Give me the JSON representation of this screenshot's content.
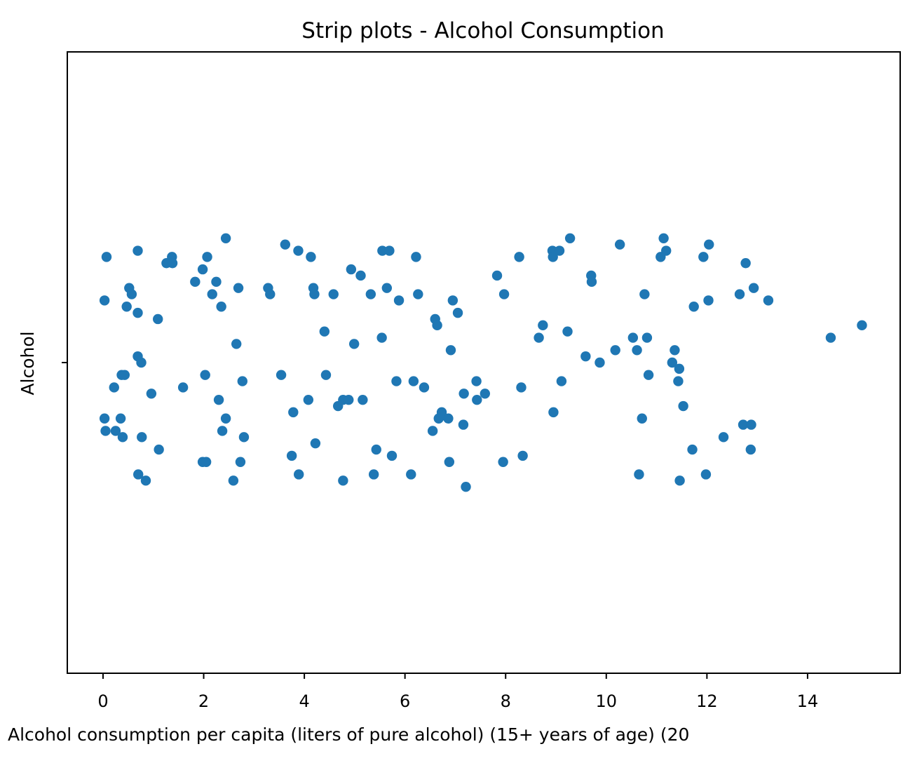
{
  "chart_data": {
    "type": "scatter",
    "title": "Strip plots - Alcohol Consumption",
    "xlabel": "Alcohol consumption per capita (liters of pure alcohol) (15+ years of age) (20",
    "ylabel": "Alcohol",
    "category": "Alcohol",
    "xlim": [
      -0.71,
      15.84
    ],
    "x_ticks": [
      0,
      2,
      4,
      6,
      8,
      10,
      12,
      14
    ],
    "y_ticks": [
      0
    ],
    "grid": false,
    "colors": {
      "points": "#1f77b4",
      "axes": "#000000"
    },
    "series": [
      {
        "points": [
          {
            "x": 0.07,
            "y": 0.17
          },
          {
            "x": 0.03,
            "y": 0.1
          },
          {
            "x": 0.22,
            "y": -0.04
          },
          {
            "x": 0.37,
            "y": -0.02
          },
          {
            "x": 0.43,
            "y": -0.02
          },
          {
            "x": 0.03,
            "y": -0.09
          },
          {
            "x": 0.05,
            "y": -0.11
          },
          {
            "x": 0.25,
            "y": -0.11
          },
          {
            "x": 0.35,
            "y": -0.09
          },
          {
            "x": 0.39,
            "y": -0.12
          },
          {
            "x": 0.47,
            "y": 0.09
          },
          {
            "x": 0.52,
            "y": 0.12
          },
          {
            "x": 0.57,
            "y": 0.11
          },
          {
            "x": 0.69,
            "y": 0.18
          },
          {
            "x": 0.69,
            "y": 0.08
          },
          {
            "x": 0.69,
            "y": 0.01
          },
          {
            "x": 0.76,
            "y": 0.0
          },
          {
            "x": 0.77,
            "y": -0.12
          },
          {
            "x": 0.7,
            "y": -0.18
          },
          {
            "x": 0.85,
            "y": -0.19
          },
          {
            "x": 0.96,
            "y": -0.05
          },
          {
            "x": 1.09,
            "y": 0.07
          },
          {
            "x": 1.11,
            "y": -0.14
          },
          {
            "x": 1.26,
            "y": 0.16
          },
          {
            "x": 1.37,
            "y": 0.17
          },
          {
            "x": 1.38,
            "y": 0.16
          },
          {
            "x": 1.59,
            "y": -0.04
          },
          {
            "x": 1.83,
            "y": 0.13
          },
          {
            "x": 1.98,
            "y": 0.15
          },
          {
            "x": 2.07,
            "y": 0.17
          },
          {
            "x": 2.17,
            "y": 0.11
          },
          {
            "x": 2.25,
            "y": 0.13
          },
          {
            "x": 2.03,
            "y": -0.02
          },
          {
            "x": 1.98,
            "y": -0.16
          },
          {
            "x": 2.05,
            "y": -0.16
          },
          {
            "x": 2.3,
            "y": -0.06
          },
          {
            "x": 2.35,
            "y": 0.09
          },
          {
            "x": 2.44,
            "y": 0.2
          },
          {
            "x": 2.37,
            "y": -0.11
          },
          {
            "x": 2.44,
            "y": -0.09
          },
          {
            "x": 2.59,
            "y": -0.19
          },
          {
            "x": 2.65,
            "y": 0.03
          },
          {
            "x": 2.69,
            "y": 0.12
          },
          {
            "x": 2.77,
            "y": -0.03
          },
          {
            "x": 2.8,
            "y": -0.12
          },
          {
            "x": 2.73,
            "y": -0.16
          },
          {
            "x": 3.28,
            "y": 0.12
          },
          {
            "x": 3.32,
            "y": 0.11
          },
          {
            "x": 3.54,
            "y": -0.02
          },
          {
            "x": 3.62,
            "y": 0.19
          },
          {
            "x": 3.75,
            "y": -0.15
          },
          {
            "x": 3.78,
            "y": -0.08
          },
          {
            "x": 3.88,
            "y": 0.18
          },
          {
            "x": 3.89,
            "y": -0.18
          },
          {
            "x": 4.08,
            "y": -0.06
          },
          {
            "x": 4.13,
            "y": 0.17
          },
          {
            "x": 4.18,
            "y": 0.12
          },
          {
            "x": 4.2,
            "y": 0.11
          },
          {
            "x": 4.22,
            "y": -0.13
          },
          {
            "x": 4.4,
            "y": 0.05
          },
          {
            "x": 4.43,
            "y": -0.02
          },
          {
            "x": 4.58,
            "y": 0.11
          },
          {
            "x": 4.67,
            "y": -0.07
          },
          {
            "x": 4.77,
            "y": -0.06
          },
          {
            "x": 4.77,
            "y": -0.19
          },
          {
            "x": 4.88,
            "y": -0.06
          },
          {
            "x": 4.93,
            "y": 0.15
          },
          {
            "x": 4.99,
            "y": 0.03
          },
          {
            "x": 5.12,
            "y": 0.14
          },
          {
            "x": 5.16,
            "y": -0.06
          },
          {
            "x": 5.32,
            "y": 0.11
          },
          {
            "x": 5.38,
            "y": -0.18
          },
          {
            "x": 5.43,
            "y": -0.14
          },
          {
            "x": 5.54,
            "y": 0.04
          },
          {
            "x": 5.55,
            "y": 0.18
          },
          {
            "x": 5.64,
            "y": 0.12
          },
          {
            "x": 5.69,
            "y": 0.18
          },
          {
            "x": 5.74,
            "y": -0.15
          },
          {
            "x": 5.83,
            "y": -0.03
          },
          {
            "x": 5.88,
            "y": 0.1
          },
          {
            "x": 6.12,
            "y": -0.18
          },
          {
            "x": 6.17,
            "y": -0.03
          },
          {
            "x": 6.22,
            "y": 0.17
          },
          {
            "x": 6.26,
            "y": 0.11
          },
          {
            "x": 6.38,
            "y": -0.04
          },
          {
            "x": 6.55,
            "y": -0.11
          },
          {
            "x": 6.6,
            "y": 0.07
          },
          {
            "x": 6.64,
            "y": 0.06
          },
          {
            "x": 6.67,
            "y": -0.09
          },
          {
            "x": 6.73,
            "y": -0.08
          },
          {
            "x": 6.86,
            "y": -0.09
          },
          {
            "x": 6.88,
            "y": -0.16
          },
          {
            "x": 6.91,
            "y": 0.02
          },
          {
            "x": 6.95,
            "y": 0.1
          },
          {
            "x": 7.05,
            "y": 0.08
          },
          {
            "x": 7.16,
            "y": -0.1
          },
          {
            "x": 7.17,
            "y": -0.05
          },
          {
            "x": 7.21,
            "y": -0.2
          },
          {
            "x": 7.42,
            "y": -0.03
          },
          {
            "x": 7.43,
            "y": -0.06
          },
          {
            "x": 7.59,
            "y": -0.05
          },
          {
            "x": 7.83,
            "y": 0.14
          },
          {
            "x": 7.95,
            "y": -0.16
          },
          {
            "x": 7.97,
            "y": 0.11
          },
          {
            "x": 8.27,
            "y": 0.17
          },
          {
            "x": 8.31,
            "y": -0.04
          },
          {
            "x": 8.34,
            "y": -0.15
          },
          {
            "x": 8.66,
            "y": 0.04
          },
          {
            "x": 8.74,
            "y": 0.06
          },
          {
            "x": 8.93,
            "y": 0.18
          },
          {
            "x": 8.94,
            "y": 0.17
          },
          {
            "x": 8.95,
            "y": -0.08
          },
          {
            "x": 9.07,
            "y": 0.18
          },
          {
            "x": 9.11,
            "y": -0.03
          },
          {
            "x": 9.23,
            "y": 0.05
          },
          {
            "x": 9.28,
            "y": 0.2
          },
          {
            "x": 9.59,
            "y": 0.01
          },
          {
            "x": 9.7,
            "y": 0.14
          },
          {
            "x": 9.71,
            "y": 0.13
          },
          {
            "x": 9.87,
            "y": 0.0
          },
          {
            "x": 10.18,
            "y": 0.02
          },
          {
            "x": 10.27,
            "y": 0.19
          },
          {
            "x": 10.53,
            "y": 0.04
          },
          {
            "x": 10.61,
            "y": 0.02
          },
          {
            "x": 10.65,
            "y": -0.18
          },
          {
            "x": 10.71,
            "y": -0.09
          },
          {
            "x": 10.76,
            "y": 0.11
          },
          {
            "x": 10.81,
            "y": 0.04
          },
          {
            "x": 10.84,
            "y": -0.02
          },
          {
            "x": 11.08,
            "y": 0.17
          },
          {
            "x": 11.14,
            "y": 0.2
          },
          {
            "x": 11.19,
            "y": 0.18
          },
          {
            "x": 11.31,
            "y": 0.0
          },
          {
            "x": 11.36,
            "y": 0.02
          },
          {
            "x": 11.43,
            "y": -0.03
          },
          {
            "x": 11.45,
            "y": -0.01
          },
          {
            "x": 11.46,
            "y": -0.19
          },
          {
            "x": 11.53,
            "y": -0.07
          },
          {
            "x": 11.71,
            "y": -0.14
          },
          {
            "x": 11.74,
            "y": 0.09
          },
          {
            "x": 11.93,
            "y": 0.17
          },
          {
            "x": 11.98,
            "y": -0.18
          },
          {
            "x": 12.03,
            "y": 0.1
          },
          {
            "x": 12.04,
            "y": 0.19
          },
          {
            "x": 12.33,
            "y": -0.12
          },
          {
            "x": 12.65,
            "y": 0.11
          },
          {
            "x": 12.72,
            "y": -0.1
          },
          {
            "x": 12.77,
            "y": 0.16
          },
          {
            "x": 12.87,
            "y": -0.14
          },
          {
            "x": 12.88,
            "y": -0.1
          },
          {
            "x": 12.93,
            "y": 0.12
          },
          {
            "x": 13.22,
            "y": 0.1
          },
          {
            "x": 14.46,
            "y": 0.04
          },
          {
            "x": 15.08,
            "y": 0.06
          }
        ]
      }
    ]
  }
}
